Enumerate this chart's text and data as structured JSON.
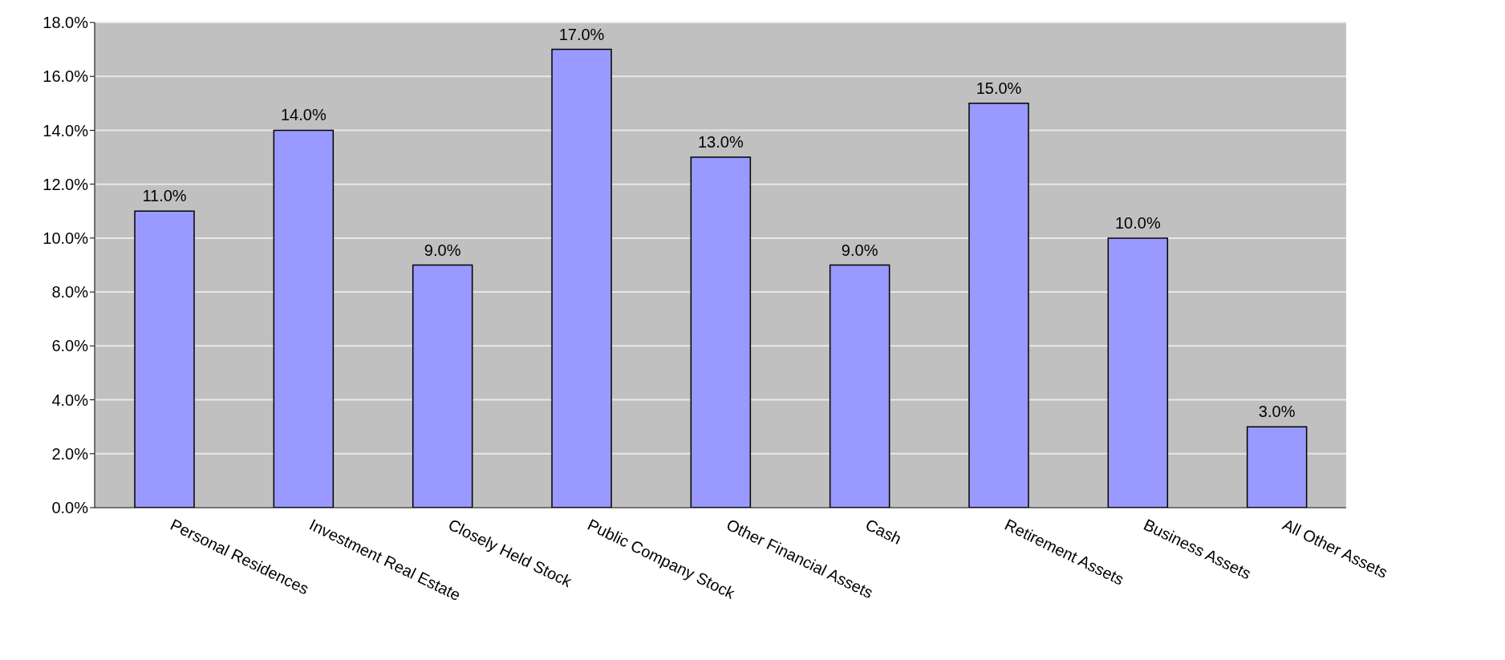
{
  "chart_data": {
    "type": "bar",
    "categories": [
      "Personal Residences",
      "Investment Real Estate",
      "Closely Held Stock",
      "Public Company Stock",
      "Other Financial Assets",
      "Cash",
      "Retirement Assets",
      "Business Assets",
      "All Other Assets"
    ],
    "values": [
      11,
      14,
      9,
      17,
      13,
      9,
      15,
      10,
      3
    ],
    "value_labels": [
      "11.0%",
      "14.0%",
      "9.0%",
      "17.0%",
      "13.0%",
      "9.0%",
      "15.0%",
      "10.0%",
      "3.0%"
    ],
    "color": "#9999ff",
    "ylim": [
      0,
      18
    ],
    "yticks": [
      {
        "value": 0,
        "label": "0.0%"
      },
      {
        "value": 2,
        "label": "2.0%"
      },
      {
        "value": 4,
        "label": "4.0%"
      },
      {
        "value": 6,
        "label": "6.0%"
      },
      {
        "value": 8,
        "label": "8.0%"
      },
      {
        "value": 10,
        "label": "10.0%"
      },
      {
        "value": 12,
        "label": "12.0%"
      },
      {
        "value": 14,
        "label": "14.0%"
      },
      {
        "value": 16,
        "label": "16.0%"
      },
      {
        "value": 18,
        "label": "18.0%"
      }
    ],
    "grid": "y",
    "legend": false
  }
}
